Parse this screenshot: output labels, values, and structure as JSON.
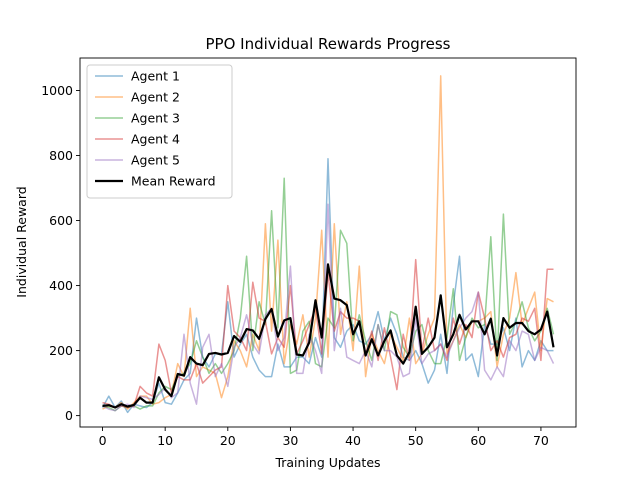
{
  "chart_data": {
    "type": "line",
    "title": "PPO Individual Rewards Progress",
    "xlabel": "Training Updates",
    "ylabel": "Individual Reward",
    "xlim": [
      -3.6,
      75.6
    ],
    "ylim": [
      -35,
      1100
    ],
    "xticks": [
      0,
      10,
      20,
      30,
      40,
      50,
      60,
      70
    ],
    "yticks": [
      0,
      200,
      400,
      600,
      800,
      1000
    ],
    "grid": false,
    "legend_position": "top-left",
    "x_start": 0,
    "series": [
      {
        "name": "Agent 1",
        "color": "#1f77b4",
        "opacity": 0.5,
        "width": 1.5,
        "values": [
          25,
          60,
          25,
          45,
          10,
          35,
          30,
          25,
          40,
          100,
          40,
          35,
          70,
          110,
          130,
          300,
          180,
          150,
          190,
          190,
          350,
          180,
          220,
          250,
          180,
          140,
          120,
          120,
          220,
          150,
          150,
          180,
          180,
          160,
          240,
          180,
          790,
          240,
          210,
          260,
          280,
          230,
          220,
          250,
          320,
          230,
          300,
          250,
          180,
          170,
          200,
          160,
          100,
          140,
          250,
          130,
          340,
          490,
          170,
          190,
          120,
          280,
          220,
          220,
          270,
          200,
          300,
          150,
          200,
          170,
          230,
          200,
          200
        ]
      },
      {
        "name": "Agent 2",
        "color": "#ff7f0e",
        "opacity": 0.5,
        "width": 1.5,
        "values": [
          20,
          30,
          25,
          40,
          20,
          40,
          60,
          60,
          35,
          40,
          55,
          65,
          160,
          120,
          330,
          120,
          150,
          140,
          130,
          55,
          120,
          230,
          200,
          150,
          250,
          200,
          590,
          260,
          540,
          160,
          280,
          220,
          310,
          180,
          300,
          570,
          180,
          590,
          250,
          350,
          200,
          460,
          120,
          250,
          200,
          160,
          250,
          210,
          170,
          300,
          160,
          190,
          250,
          300,
          1045,
          190,
          230,
          280,
          240,
          290,
          290,
          300,
          320,
          150,
          250,
          300,
          440,
          280,
          330,
          380,
          200,
          360,
          350
        ]
      },
      {
        "name": "Agent 3",
        "color": "#2ca02c",
        "opacity": 0.5,
        "width": 1.5,
        "values": [
          30,
          25,
          15,
          30,
          25,
          30,
          20,
          30,
          30,
          70,
          90,
          80,
          120,
          130,
          160,
          230,
          180,
          130,
          160,
          130,
          160,
          200,
          300,
          490,
          200,
          350,
          280,
          630,
          270,
          730,
          130,
          140,
          260,
          290,
          160,
          150,
          300,
          270,
          570,
          530,
          230,
          310,
          230,
          170,
          280,
          200,
          320,
          310,
          210,
          180,
          260,
          280,
          200,
          160,
          160,
          240,
          390,
          170,
          240,
          300,
          270,
          280,
          550,
          170,
          620,
          250,
          290,
          350,
          270,
          230,
          260,
          330,
          250
        ]
      },
      {
        "name": "Agent 4",
        "color": "#d62728",
        "opacity": 0.5,
        "width": 1.5,
        "values": [
          40,
          35,
          25,
          30,
          25,
          30,
          90,
          70,
          60,
          220,
          170,
          70,
          120,
          110,
          110,
          160,
          100,
          120,
          140,
          150,
          400,
          260,
          240,
          200,
          410,
          300,
          290,
          190,
          240,
          210,
          400,
          190,
          230,
          280,
          330,
          190,
          440,
          260,
          320,
          300,
          300,
          290,
          190,
          260,
          170,
          270,
          180,
          80,
          250,
          170,
          480,
          200,
          300,
          200,
          220,
          170,
          300,
          220,
          280,
          240,
          380,
          300,
          200,
          230,
          180,
          240,
          250,
          300,
          290,
          330,
          170,
          450,
          450
        ]
      },
      {
        "name": "Agent 5",
        "color": "#9467bd",
        "opacity": 0.5,
        "width": 1.5,
        "values": [
          30,
          20,
          15,
          30,
          35,
          25,
          60,
          55,
          50,
          65,
          85,
          55,
          70,
          250,
          100,
          35,
          210,
          250,
          120,
          160,
          90,
          210,
          240,
          310,
          220,
          190,
          310,
          330,
          200,
          240,
          460,
          130,
          130,
          250,
          200,
          130,
          650,
          200,
          330,
          180,
          170,
          160,
          200,
          150,
          280,
          200,
          200,
          180,
          120,
          130,
          300,
          160,
          190,
          200,
          220,
          180,
          230,
          270,
          300,
          320,
          380,
          140,
          110,
          150,
          120,
          230,
          200,
          260,
          250,
          170,
          210,
          200,
          160
        ]
      }
    ],
    "mean": {
      "name": "Mean Reward",
      "color": "#000000",
      "width": 2.2,
      "values": [
        30,
        32,
        25,
        35,
        28,
        33,
        55,
        40,
        40,
        118,
        80,
        60,
        128,
        123,
        180,
        160,
        155,
        190,
        193,
        188,
        193,
        245,
        227,
        266,
        262,
        236,
        297,
        328,
        243,
        293,
        300,
        188,
        185,
        225,
        355,
        240,
        465,
        360,
        355,
        340,
        250,
        290,
        185,
        235,
        185,
        230,
        262,
        185,
        160,
        195,
        335,
        190,
        210,
        240,
        370,
        210,
        250,
        310,
        265,
        290,
        290,
        250,
        298,
        185,
        300,
        270,
        285,
        285,
        260,
        250,
        265,
        320,
        210
      ]
    }
  }
}
